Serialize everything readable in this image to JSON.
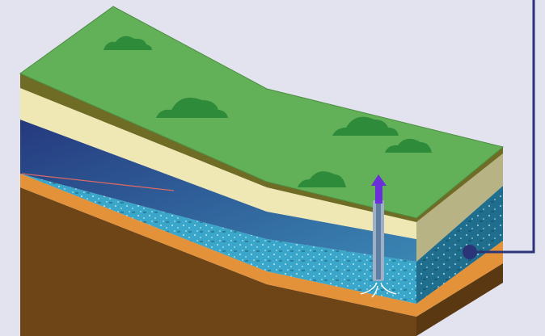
{
  "diagram": {
    "subject": "",
    "colors": {
      "background": "#e3e3ef",
      "grass_top": "#62b057",
      "grass_edge": "#4e8f44",
      "topsoil_side": "#6f6c26",
      "clay_layer": "#f0e8b4",
      "clay_layer_side": "#b8b384",
      "aquifer_water": "#3aa6c9",
      "aquifer_water_dark": "#1f6e8e",
      "confined_gradient_top": "#25397e",
      "confined_gradient_bottom": "#3a86b3",
      "orange_band": "#e3923a",
      "bedrock": "#6e4517",
      "bedrock_side": "#5a3812",
      "tree_bush": "#2e8b3a",
      "well_pipe": "#9fb0c6",
      "well_arrow": "#6a2fd9",
      "callout_line": "#2c3478",
      "callout_dot": "#2c3478",
      "pressure_line": "#d66a66"
    },
    "icons": [
      "bush-icon",
      "well-pipe-icon",
      "up-arrow-icon",
      "inflow-arrow-icon",
      "callout-dot-icon"
    ],
    "bushes": 5
  }
}
